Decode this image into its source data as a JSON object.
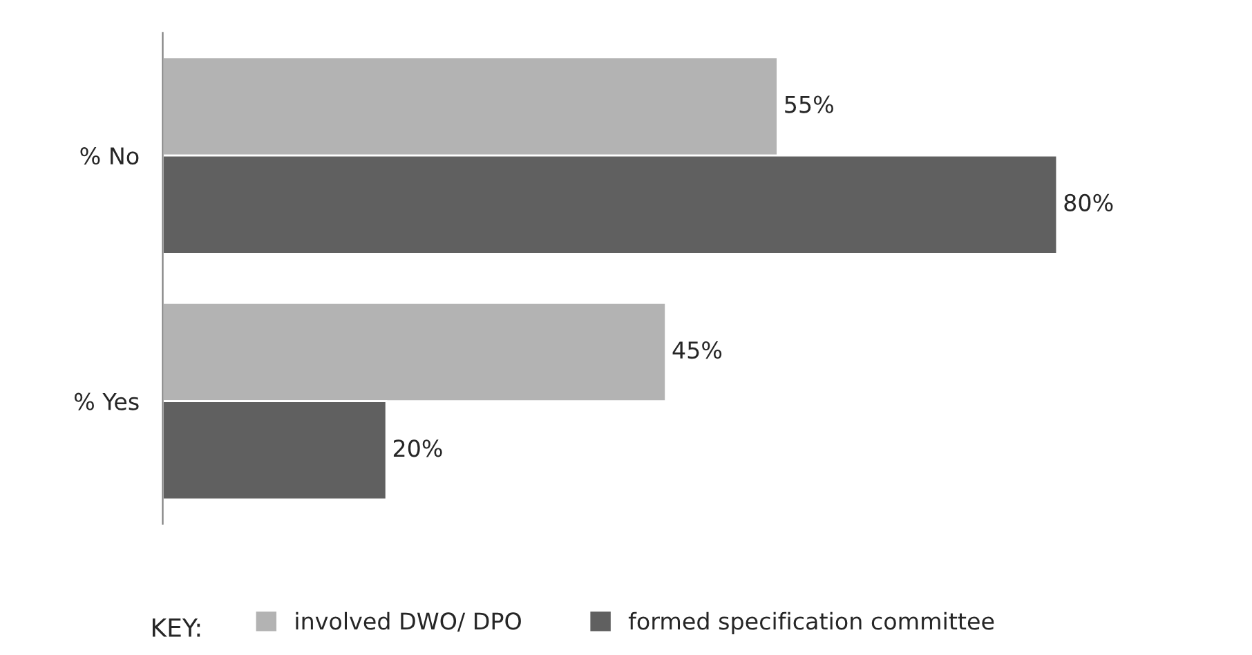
{
  "chart_data": {
    "type": "bar",
    "orientation": "horizontal",
    "categories": [
      "% No",
      "% Yes"
    ],
    "series": [
      {
        "name": "involved DWO/ DPO",
        "color": "#b3b3b3",
        "values": [
          55,
          45
        ],
        "value_labels": [
          "55%",
          "45%"
        ]
      },
      {
        "name": "formed specification committee",
        "color": "#606060",
        "values": [
          80,
          20
        ],
        "value_labels": [
          "80%",
          "20%"
        ]
      }
    ],
    "legend": "bottom",
    "legend_title": "KEY:",
    "grid": false
  }
}
